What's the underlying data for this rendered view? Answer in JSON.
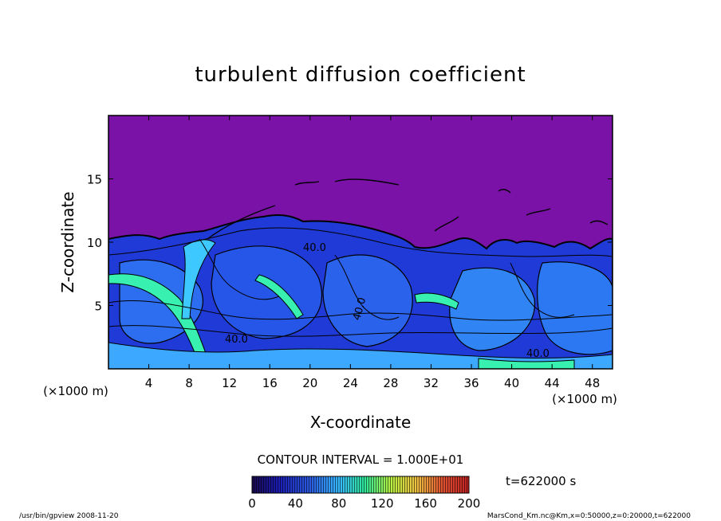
{
  "chart_data": {
    "type": "heatmap",
    "title": "turbulent diffusion coefficient",
    "xlabel": "X-coordinate",
    "ylabel": "Z-coordinate",
    "x_unit_left": "(×1000 m)",
    "x_unit_right": "(×1000 m)",
    "xlim": [
      0,
      50
    ],
    "ylim": [
      0,
      20
    ],
    "x_ticks": [
      "4",
      "8",
      "12",
      "16",
      "20",
      "24",
      "28",
      "32",
      "36",
      "40",
      "44",
      "48"
    ],
    "y_ticks": [
      "5",
      "10",
      "15"
    ],
    "contour_interval": "CONTOUR INTERVAL = 1.000E+01",
    "contour_labels": [
      "40.0",
      "40.0",
      "40.0",
      "40.0"
    ],
    "colorbar": {
      "range": [
        0,
        200
      ],
      "tick_labels": [
        "0",
        "40",
        "80",
        "120",
        "160",
        "200"
      ],
      "colors": [
        "#1a0a4a",
        "#1b1bb0",
        "#2a5be0",
        "#36b8ff",
        "#2ee89a",
        "#b8f040",
        "#f0c040",
        "#e05030",
        "#c02020"
      ]
    },
    "colors": {
      "background_field": "#7a12a8",
      "low_field": "#1f3ad6",
      "mid_field": "#3da8ff",
      "high_field": "#38f0b0"
    },
    "time_label": "t=622000 s"
  },
  "footer": {
    "left": "/usr/bin/gpview  2008-11-20",
    "right": "MarsCond_Km.nc@Km,x=0:50000,z=0:20000,t=622000"
  }
}
